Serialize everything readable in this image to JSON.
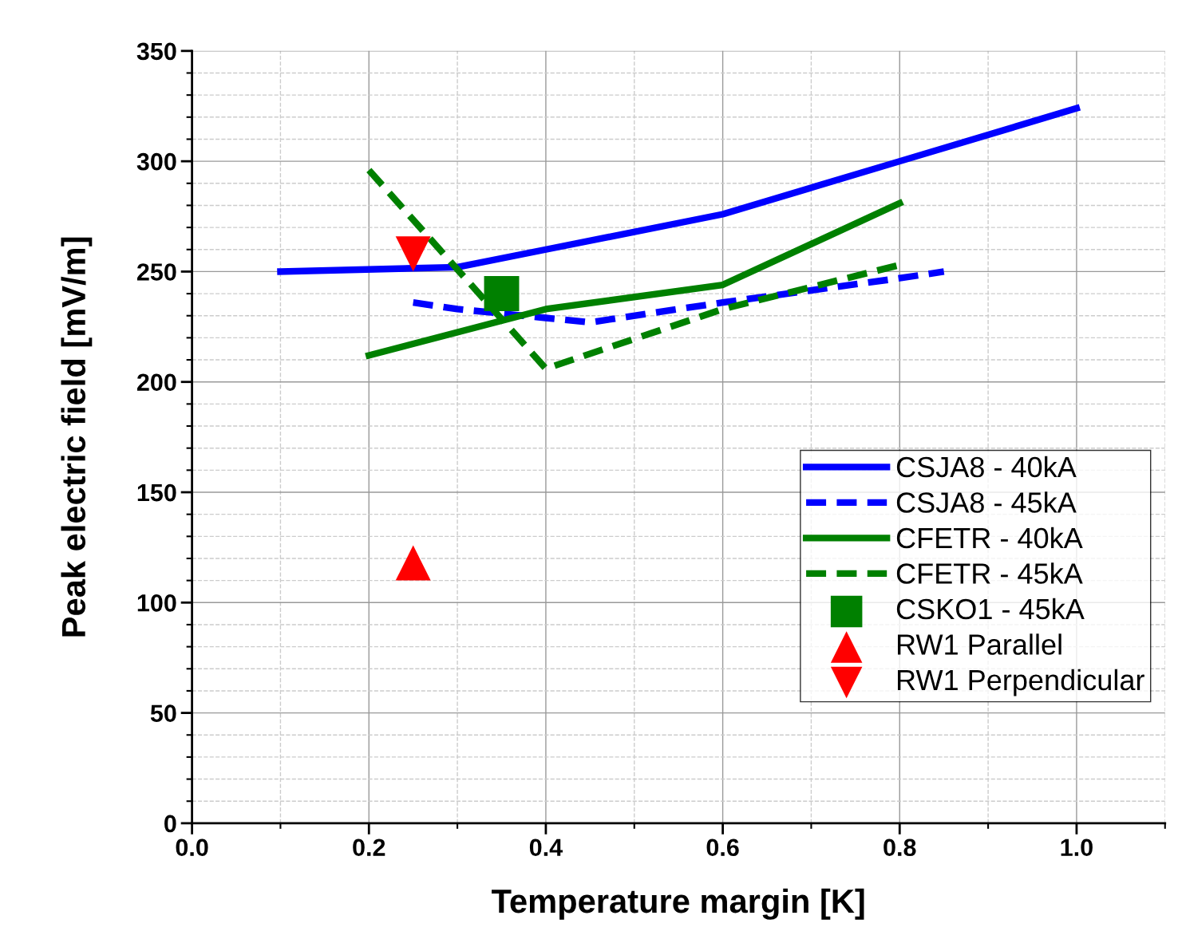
{
  "chart_data": {
    "type": "line",
    "xlabel": "Temperature margin [K]",
    "ylabel": "Peak electric field [mV/m]",
    "xlim": [
      0,
      1.1
    ],
    "xticks": [
      {
        "value": 0,
        "label": "0.0"
      },
      0.2,
      0.4,
      0.6,
      0.8,
      {
        "value": 1.0,
        "label": "1.0"
      }
    ],
    "ylim": [
      0,
      350
    ],
    "yticks": [
      0,
      50,
      100,
      150,
      200,
      250,
      300,
      350
    ],
    "grid": true,
    "legend": "right",
    "marker": "none",
    "series": [
      {
        "name": "CSJA8 - 40kA",
        "color": "#0000ff",
        "line_style": "solid",
        "x": [
          0.1,
          0.3,
          0.4,
          0.6,
          0.8,
          1.0
        ],
        "values": [
          250,
          252,
          260,
          276,
          300,
          324
        ]
      },
      {
        "name": "CSJA8 - 45kA",
        "color": "#0000ff",
        "line_style": "dashed",
        "x": [
          0.25,
          0.3,
          0.4,
          0.45,
          0.6,
          0.8,
          0.85
        ],
        "values": [
          236,
          233,
          229,
          227,
          236,
          247,
          250
        ]
      },
      {
        "name": "CFETR - 40kA",
        "color": "#008000",
        "line_style": "solid",
        "x": [
          0.2,
          0.4,
          0.6,
          0.8
        ],
        "values": [
          212,
          233,
          244,
          281
        ]
      },
      {
        "name": "CFETR - 45kA",
        "color": "#008000",
        "line_style": "dashed",
        "x": [
          0.2,
          0.4,
          0.6,
          0.8
        ],
        "values": [
          296,
          206,
          233,
          253
        ]
      },
      {
        "name": "CSKO1 - 45kA",
        "color": "#008000",
        "type": "scatter",
        "marker": "square",
        "x": [
          0.35
        ],
        "values": [
          240
        ]
      },
      {
        "name": "RW1 Parallel",
        "color": "#ff0000",
        "type": "scatter",
        "marker": "triangle",
        "x": [
          0.25
        ],
        "values": [
          118
        ]
      },
      {
        "name": "RW1 Perpendicular",
        "color": "#ff0000",
        "type": "scatter",
        "marker": "triangle_down",
        "x": [
          0.25
        ],
        "values": [
          258
        ]
      }
    ]
  }
}
